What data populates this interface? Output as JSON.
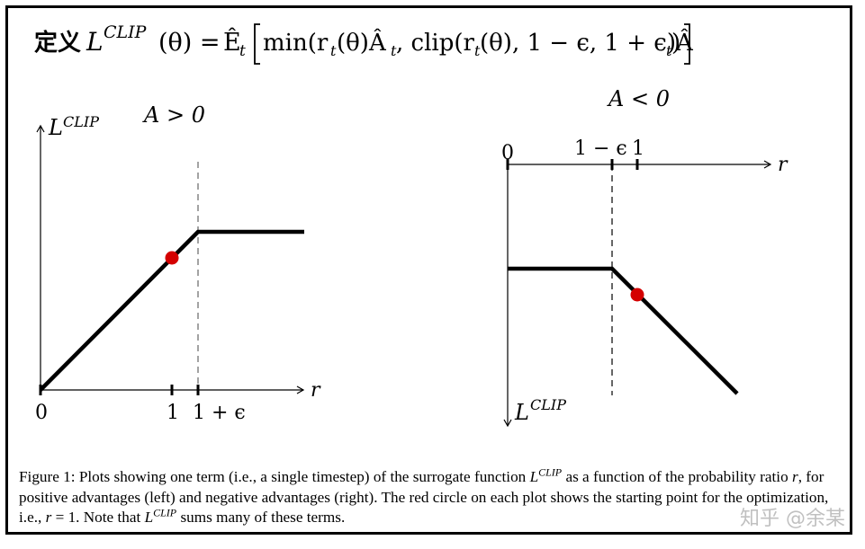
{
  "formula": {
    "prefix": "定义",
    "lhs": "L",
    "lhs_sup": "CLIP",
    "lhs_arg": "(θ) = ",
    "expect": "Ê",
    "expect_sub": "t",
    "body_1": "min(r",
    "body_2": "(θ)Â",
    "body_3": ", clip(r",
    "body_4": "(θ), 1 − ϵ, 1 + ϵ)Â",
    "body_5": ")",
    "sub_t": "t"
  },
  "left_plot": {
    "title": "A > 0",
    "ylabel": "L",
    "ylabel_sup": "CLIP",
    "xlabel": "r",
    "tick_0": "0",
    "tick_1": "1",
    "tick_1eps": "1 + ϵ"
  },
  "right_plot": {
    "title": "A < 0",
    "ylabel": "L",
    "ylabel_sup": "CLIP",
    "xlabel": "r",
    "tick_0": "0",
    "tick_1": "1",
    "tick_1meps": "1 − ϵ"
  },
  "chart_data": [
    {
      "type": "line",
      "title": "A > 0",
      "xlabel": "r",
      "ylabel": "L^CLIP",
      "x_ticks": [
        "0",
        "1",
        "1 + ϵ"
      ],
      "series": [
        {
          "x": [
            0,
            1.2,
            2.0
          ],
          "y": [
            0,
            1,
            1
          ]
        }
      ],
      "marker": {
        "x": 1,
        "color": "#d40000"
      },
      "dashed_line_at": "1 + ϵ"
    },
    {
      "type": "line",
      "title": "A < 0",
      "xlabel": "r",
      "ylabel": "L^CLIP",
      "x_ticks": [
        "0",
        "1 − ϵ",
        "1"
      ],
      "series": [
        {
          "x": [
            0,
            0.8,
            1.8
          ],
          "y": [
            -1,
            -1,
            -2.2
          ]
        }
      ],
      "marker": {
        "x": 1,
        "color": "#d40000"
      },
      "dashed_line_at": "1 − ϵ"
    }
  ],
  "caption": {
    "part1": "Figure 1: Plots showing one term (i.e., a single timestep) of the surrogate function ",
    "lclip": "L",
    "lclip_sup": "CLIP",
    "part2": " as a function of the probability ratio ",
    "r": "r",
    "part3": ", for positive advantages (left) and negative advantages (right). The red circle on each plot shows the starting point for the optimization, i.e., ",
    "r2": "r",
    "part4": " = 1. Note that ",
    "lclip2": "L",
    "lclip2_sup": "CLIP",
    "part5": " sums many of these terms."
  },
  "watermark": "知乎 @余某",
  "colors": {
    "line": "#000000",
    "marker": "#d40000",
    "dashed": "#666666"
  }
}
